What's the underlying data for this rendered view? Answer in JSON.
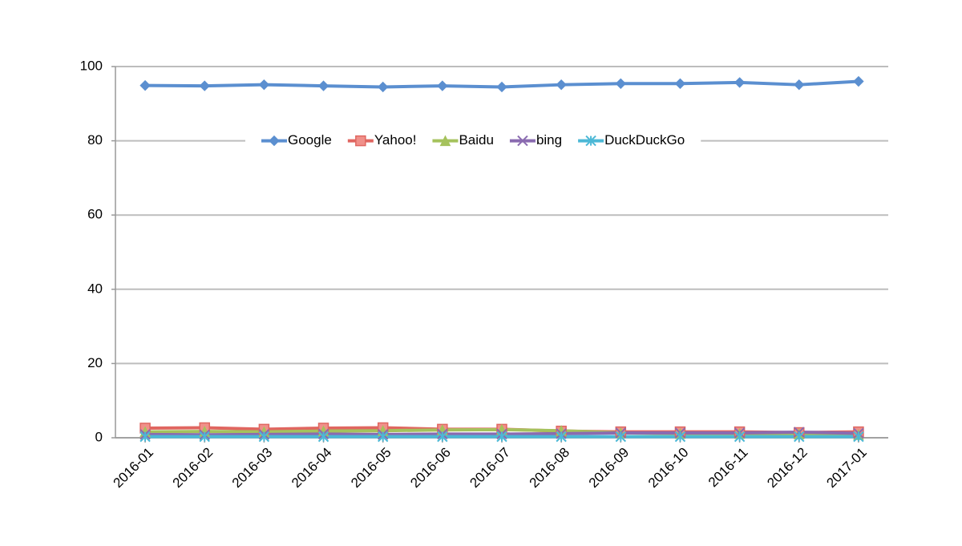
{
  "chart_data": {
    "type": "line",
    "categories": [
      "2016-01",
      "2016-02",
      "2016-03",
      "2016-04",
      "2016-05",
      "2016-06",
      "2016-07",
      "2016-08",
      "2016-09",
      "2016-10",
      "2016-11",
      "2016-12",
      "2017-01"
    ],
    "series": [
      {
        "name": "Google",
        "color": "#5b8fd0",
        "marker": "diamond",
        "values": [
          94.9,
          94.8,
          95.1,
          94.8,
          94.5,
          94.8,
          94.5,
          95.1,
          95.4,
          95.4,
          95.7,
          95.1,
          96.0
        ]
      },
      {
        "name": "Yahoo!",
        "color": "#e06660",
        "marker": "square",
        "values": [
          2.6,
          2.7,
          2.3,
          2.6,
          2.7,
          2.3,
          2.3,
          1.8,
          1.6,
          1.6,
          1.6,
          1.4,
          1.6
        ]
      },
      {
        "name": "Baidu",
        "color": "#a5c25c",
        "marker": "triangle",
        "values": [
          1.6,
          1.7,
          1.6,
          1.8,
          1.9,
          2.1,
          2.2,
          1.9,
          1.3,
          1.1,
          1.1,
          1.0,
          0.8
        ]
      },
      {
        "name": "bing",
        "color": "#8a6bb0",
        "marker": "x",
        "values": [
          0.9,
          0.8,
          0.9,
          1.0,
          0.9,
          1.0,
          1.0,
          1.1,
          1.3,
          1.3,
          1.3,
          1.5,
          1.2
        ]
      },
      {
        "name": "DuckDuckGo",
        "color": "#4cb8d6",
        "marker": "star",
        "values": [
          0.3,
          0.3,
          0.3,
          0.3,
          0.3,
          0.3,
          0.3,
          0.3,
          0.3,
          0.3,
          0.3,
          0.3,
          0.3
        ]
      }
    ],
    "ylim": [
      0,
      100
    ],
    "yticks": [
      0,
      20,
      40,
      60,
      80,
      100
    ],
    "grid": true,
    "legend": "top"
  }
}
